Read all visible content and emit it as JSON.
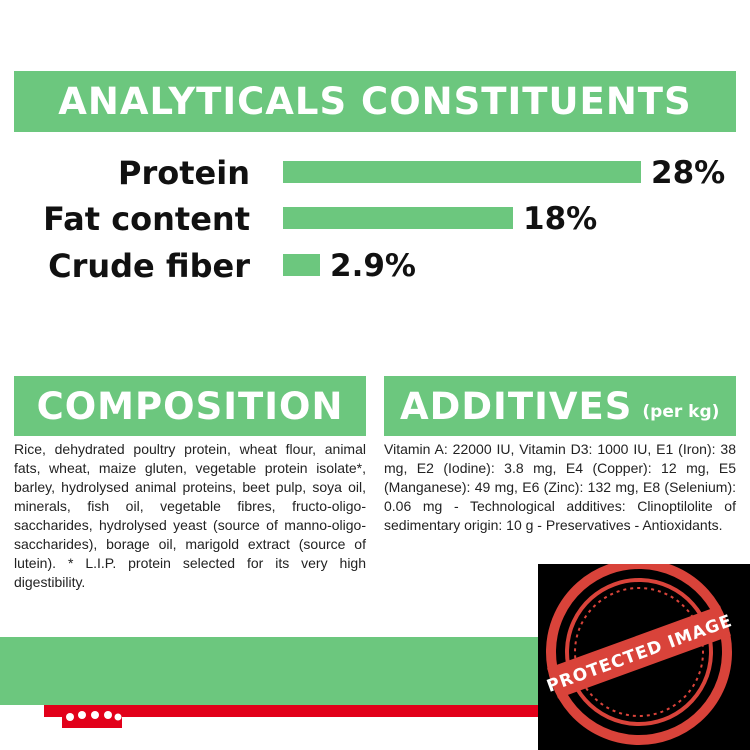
{
  "analytics": {
    "title": "ANALYTICALS CONSTITUENTS",
    "rows": [
      {
        "label": "Protein",
        "value_text": "28%",
        "value": 28
      },
      {
        "label": "Fat content",
        "value_text": "18%",
        "value": 18
      },
      {
        "label": "Crude fiber",
        "value_text": "2.9%",
        "value": 2.9
      }
    ]
  },
  "composition": {
    "title": "COMPOSITION",
    "text": "Rice, dehydrated poultry protein, wheat flour, animal fats, wheat, maize gluten, vegetable protein isolate*, barley, hydrolysed animal proteins, beet pulp, soya oil, minerals, fish oil, vegetable fibres, fructo-oligo-saccharides, hydrolysed yeast (source of manno-oligo-saccharides), borage oil, marigold extract (source of lutein). * L.I.P. protein selected for its very high digestibility."
  },
  "additives": {
    "title": "ADDITIVES",
    "unit": "(per kg)",
    "text": "Vitamin A: 22000 IU, Vitamin D3: 1000 IU, E1 (Iron): 38 mg, E2 (Iodine): 3.8 mg, E4 (Copper): 12 mg, E5 (Manganese): 49 mg, E6 (Zinc): 132 mg, E8 (Selenium): 0.06 mg - Technological additives: Clinoptilolite of sedimentary origin: 10 g - Preservatives - Antioxidants."
  },
  "watermark": {
    "stamp_text": "PROTECTED IMAGE"
  },
  "colors": {
    "accent_green": "#6cc77e",
    "brand_red": "#e2001a",
    "stamp_red": "#d9433a"
  }
}
